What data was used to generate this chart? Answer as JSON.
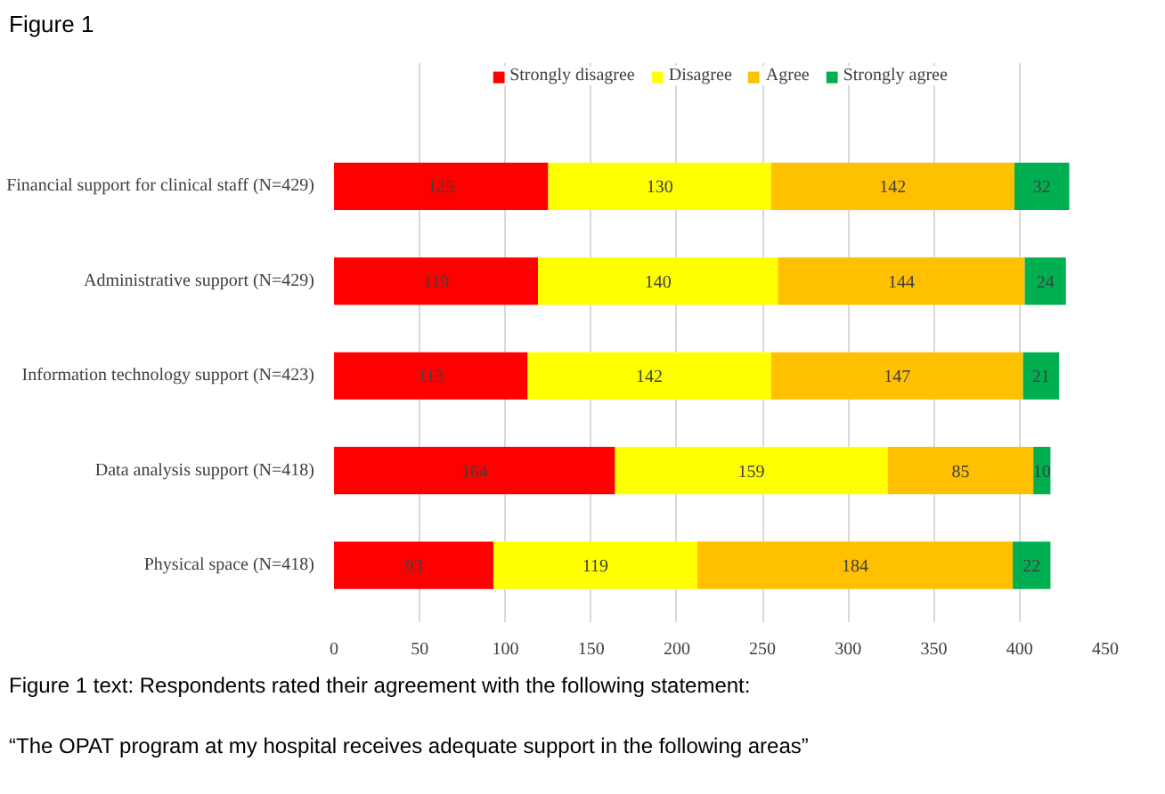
{
  "chart_data": {
    "type": "bar",
    "orientation": "horizontal",
    "stacked": true,
    "title": "Figure 1",
    "categories": [
      "Financial support for clinical staff (N=429)",
      "Administrative support (N=429)",
      "Information technology support (N=423)",
      "Data analysis support (N=418)",
      "Physical space (N=418)"
    ],
    "series": [
      {
        "name": "Strongly disagree",
        "color": "#ff0000",
        "values": [
          125,
          119,
          113,
          164,
          93
        ]
      },
      {
        "name": "Disagree",
        "color": "#ffff00",
        "values": [
          130,
          140,
          142,
          159,
          119
        ]
      },
      {
        "name": "Agree",
        "color": "#ffc000",
        "values": [
          142,
          144,
          147,
          85,
          184
        ]
      },
      {
        "name": "Strongly agree",
        "color": "#00b050",
        "values": [
          32,
          24,
          21,
          10,
          22
        ]
      }
    ],
    "xlim": [
      0,
      450
    ],
    "xticks": [
      0,
      50,
      100,
      150,
      200,
      250,
      300,
      350,
      400,
      450
    ],
    "grid": "x",
    "legend": "top",
    "data_labels": true,
    "annotations": [
      "Figure 1 text: Respondents rated their agreement with the following statement:",
      "“The OPAT program at my hospital receives adequate support in the following areas”"
    ]
  }
}
